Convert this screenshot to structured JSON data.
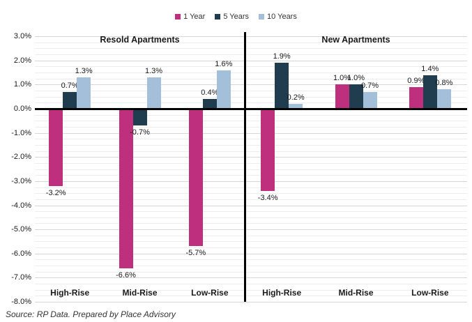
{
  "source_note": "Source: RP Data.   Prepared by Place Advisory",
  "chart_data": {
    "type": "bar",
    "title": "",
    "legend_position": "top",
    "grid": true,
    "y_axis": {
      "min": -8.0,
      "max": 3.0,
      "major_step": 1.0,
      "minor_step": 0.25,
      "tick_labels": [
        "3.0%",
        "2.0%",
        "1.0%",
        "0.0%",
        "-1.0%",
        "-2.0%",
        "-3.0%",
        "-4.0%",
        "-5.0%",
        "-6.0%",
        "-7.0%",
        "-8.0%"
      ]
    },
    "series_names": [
      "1 Year",
      "5 Years",
      "10 Years"
    ],
    "series_colors": [
      "#BE2F7E",
      "#1F3D4F",
      "#A3BFD9"
    ],
    "sections": [
      {
        "title": "Resold Apartments",
        "categories": [
          "High-Rise",
          "Mid-Rise",
          "Low-Rise"
        ],
        "series": [
          {
            "name": "1 Year",
            "color": "#BE2F7E",
            "values": [
              -3.2,
              -6.6,
              -5.7
            ]
          },
          {
            "name": "5 Years",
            "color": "#1F3D4F",
            "values": [
              0.7,
              -0.7,
              0.4
            ]
          },
          {
            "name": "10 Years",
            "color": "#A3BFD9",
            "values": [
              1.3,
              1.3,
              1.6
            ]
          }
        ]
      },
      {
        "title": "New Apartments",
        "categories": [
          "High-Rise",
          "Mid-Rise",
          "Low-Rise"
        ],
        "series": [
          {
            "name": "1 Year",
            "color": "#BE2F7E",
            "values": [
              -3.4,
              1.0,
              0.9
            ]
          },
          {
            "name": "5 Years",
            "color": "#1F3D4F",
            "values": [
              1.9,
              1.0,
              1.4
            ]
          },
          {
            "name": "10 Years",
            "color": "#A3BFD9",
            "values": [
              0.2,
              0.7,
              0.8
            ]
          }
        ]
      }
    ]
  }
}
